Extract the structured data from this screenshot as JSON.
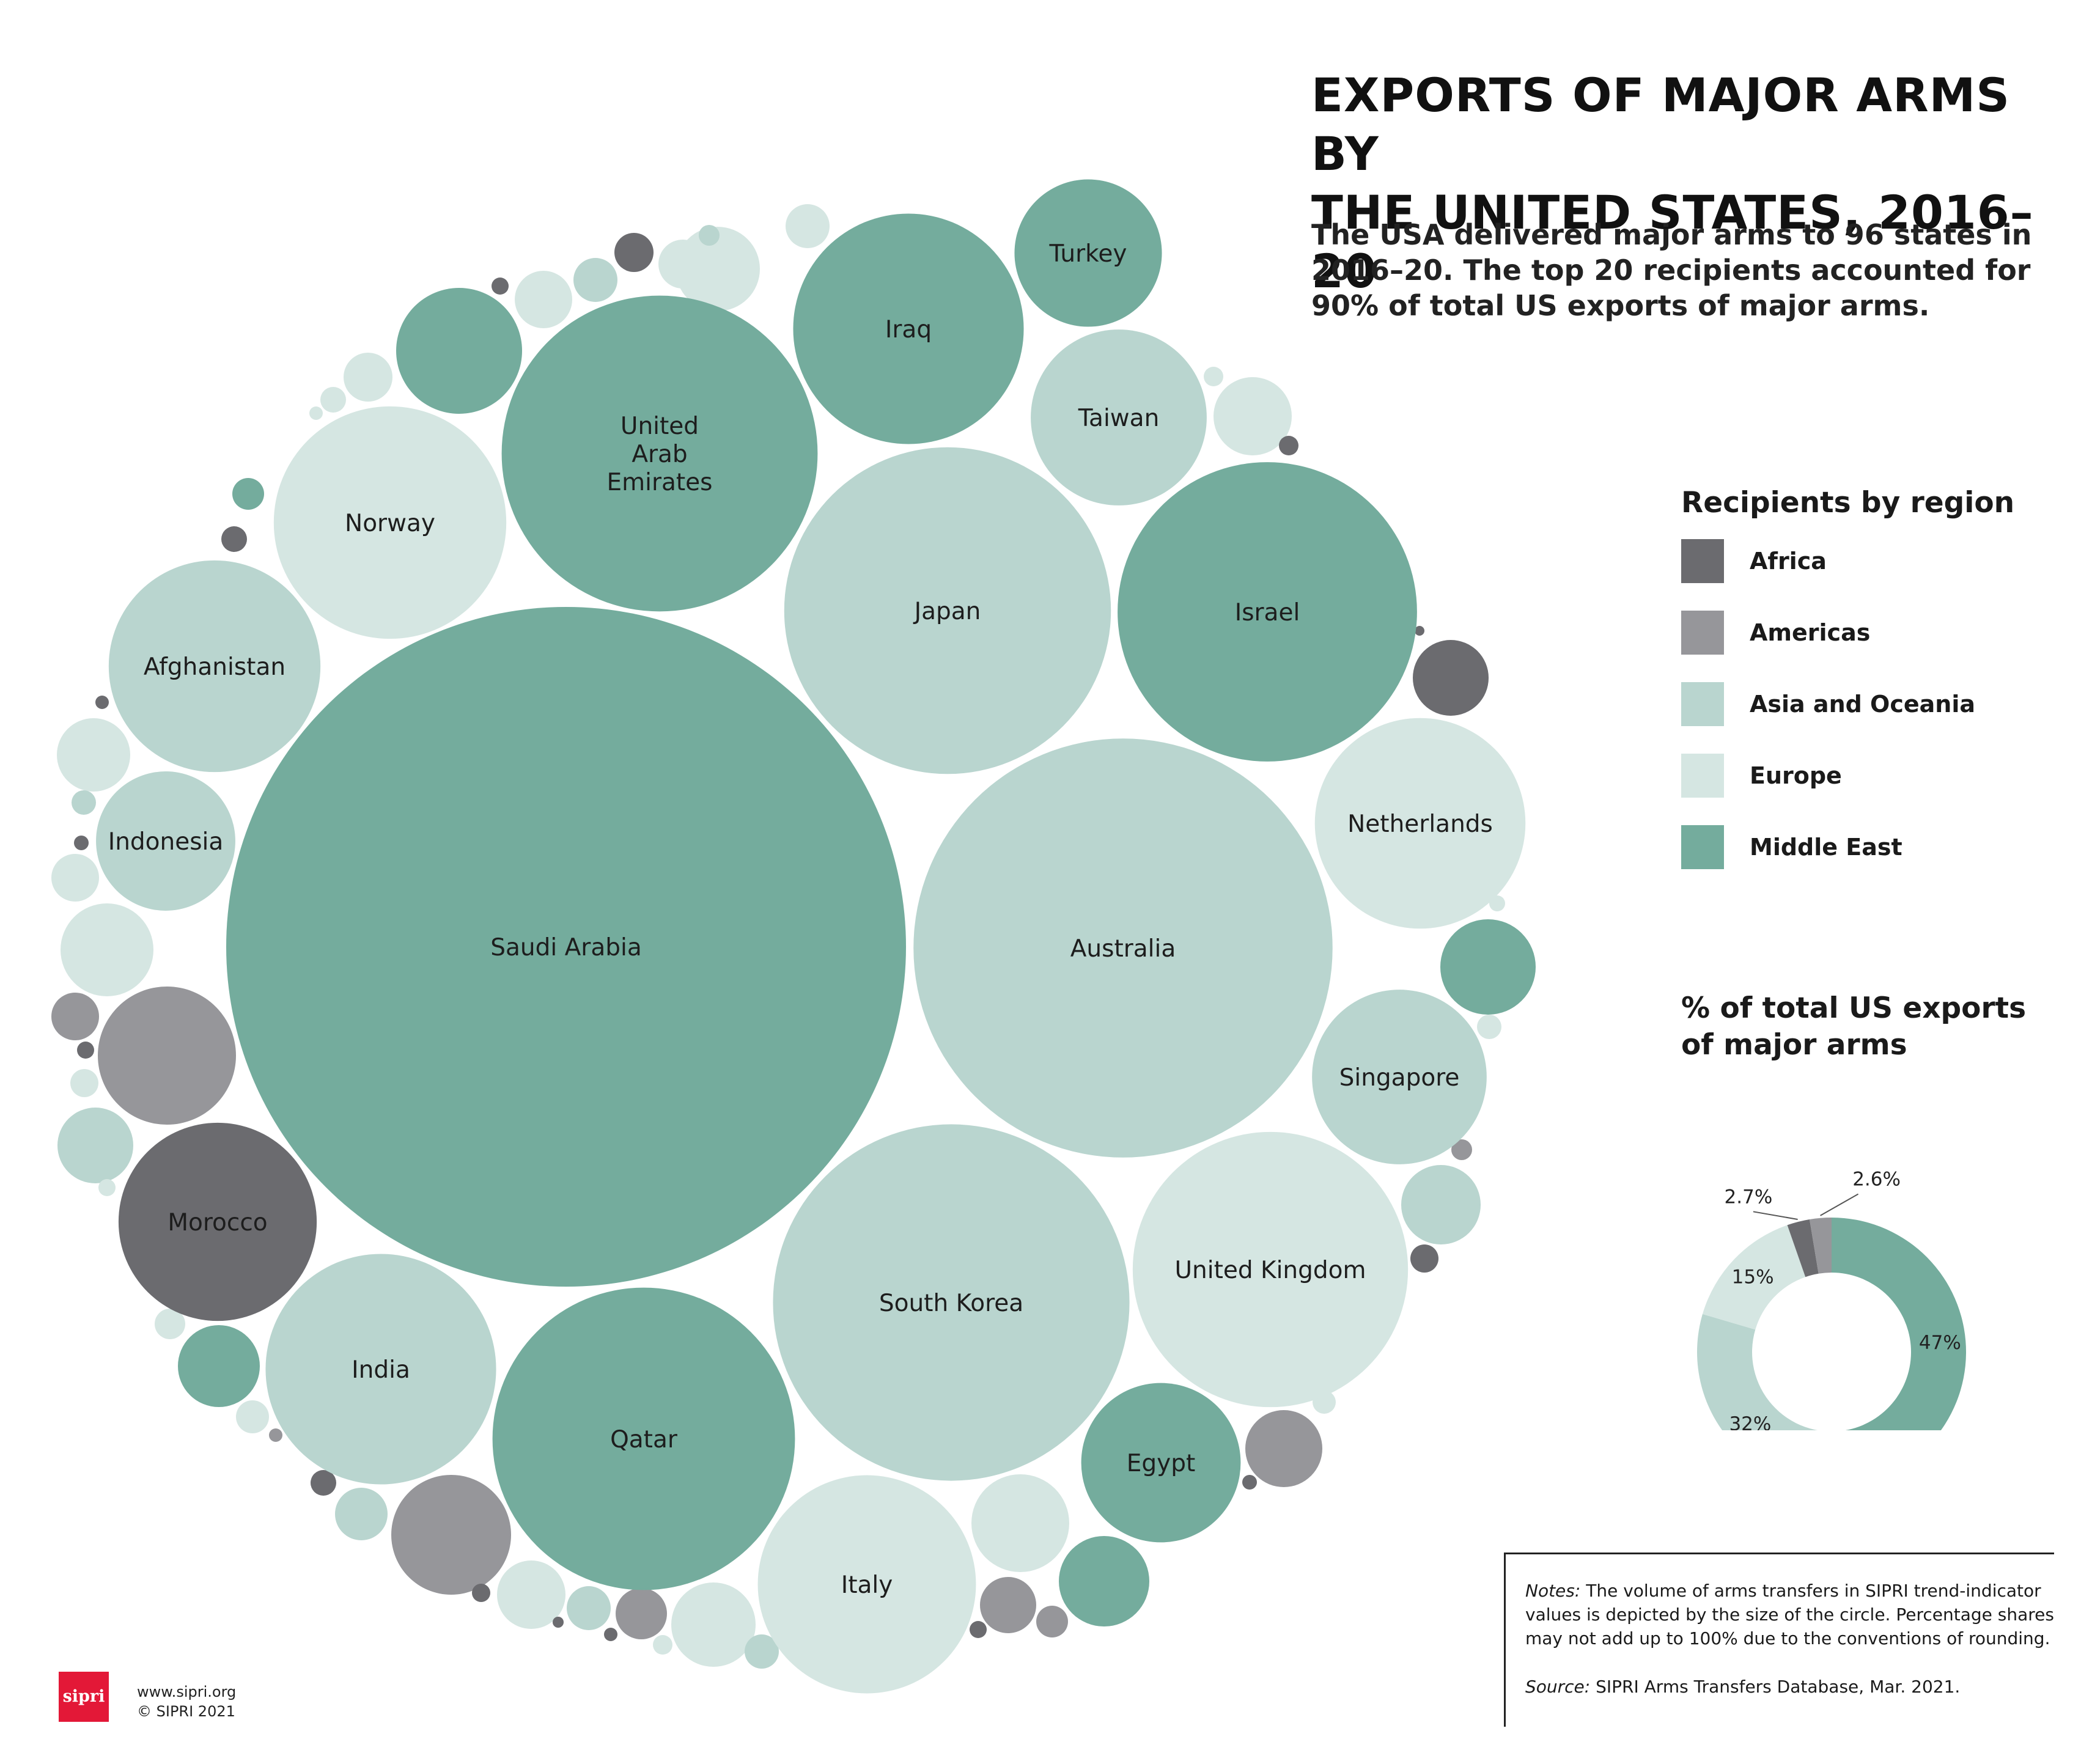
{
  "header": {
    "title_line1": "EXPORTS OF MAJOR ARMS BY",
    "title_line2": "THE UNITED STATES, 2016–20",
    "subtitle": "The USA delivered major arms to 96 states in 2016–20. The top 20 recipients accounted for 90% of total US exports of major arms."
  },
  "legend": {
    "title": "Recipients by region",
    "items": [
      {
        "label": "Africa",
        "color": "#6b6b6f"
      },
      {
        "label": "Americas",
        "color": "#96969a"
      },
      {
        "label": "Asia and Oceania",
        "color": "#b9d5cf"
      },
      {
        "label": "Europe",
        "color": "#d5e6e2"
      },
      {
        "label": "Middle East",
        "color": "#74ac9d"
      }
    ]
  },
  "share_title_line1": "% of total US exports",
  "share_title_line2": "of major arms",
  "notes": {
    "label": "Notes:",
    "text": "The volume of arms transfers in SIPRI trend-indicator values is depicted by the size of the circle. Percentage shares may not add up to 100% due to the conventions of rounding.",
    "source_label": "Source:",
    "source_text": "SIPRI Arms Transfers Database, Mar. 2021."
  },
  "footer": {
    "logo": "sipri",
    "url": "www.sipri.org",
    "copyright": "© SIPRI 2021"
  },
  "chart_data": [
    {
      "type": "bubble",
      "size_measure": "volume of arms transfers (SIPRI trend-indicator values, relative)",
      "labeled_recipients": [
        {
          "name": "Saudi Arabia",
          "region": "Middle East",
          "relative_size": 1.0
        },
        {
          "name": "Australia",
          "region": "Asia and Oceania",
          "relative_size": 0.38
        },
        {
          "name": "South Korea",
          "region": "Asia and Oceania",
          "relative_size": 0.275
        },
        {
          "name": "Japan",
          "region": "Asia and Oceania",
          "relative_size": 0.231
        },
        {
          "name": "Qatar",
          "region": "Middle East",
          "relative_size": 0.198
        },
        {
          "name": "United Arab Emirates",
          "region": "Middle East",
          "relative_size": 0.216
        },
        {
          "name": "Israel",
          "region": "Middle East",
          "relative_size": 0.194
        },
        {
          "name": "United Kingdom",
          "region": "Europe",
          "relative_size": 0.164
        },
        {
          "name": "Norway",
          "region": "Europe",
          "relative_size": 0.117
        },
        {
          "name": "Italy",
          "region": "Europe",
          "relative_size": 0.103
        },
        {
          "name": "India",
          "region": "Asia and Oceania",
          "relative_size": 0.115
        },
        {
          "name": "Iraq",
          "region": "Middle East",
          "relative_size": 0.115
        },
        {
          "name": "Netherlands",
          "region": "Europe",
          "relative_size": 0.096
        },
        {
          "name": "Morocco",
          "region": "Africa",
          "relative_size": 0.085
        },
        {
          "name": "Afghanistan",
          "region": "Asia and Oceania",
          "relative_size": 0.097
        },
        {
          "name": "Taiwan",
          "region": "Asia and Oceania",
          "relative_size": 0.067
        },
        {
          "name": "Singapore",
          "region": "Asia and Oceania",
          "relative_size": 0.066
        },
        {
          "name": "Egypt",
          "region": "Middle East",
          "relative_size": 0.055
        },
        {
          "name": "Turkey",
          "region": "Middle East",
          "relative_size": 0.047
        },
        {
          "name": "Indonesia",
          "region": "Asia and Oceania",
          "relative_size": 0.042
        }
      ]
    },
    {
      "type": "pie",
      "style": "donut",
      "title": "% of total US exports of major arms",
      "slices": [
        {
          "region": "Middle East",
          "label": "47%",
          "value": 47,
          "color": "#74ac9d"
        },
        {
          "region": "Asia and Oceania",
          "label": "32%",
          "value": 32,
          "color": "#b9d5cf"
        },
        {
          "region": "Europe",
          "label": "15%",
          "value": 15,
          "color": "#d5e6e2"
        },
        {
          "region": "Africa",
          "label": "2.7%",
          "value": 2.7,
          "color": "#6b6b6f"
        },
        {
          "region": "Americas",
          "label": "2.6%",
          "value": 2.6,
          "color": "#96969a"
        }
      ]
    }
  ]
}
